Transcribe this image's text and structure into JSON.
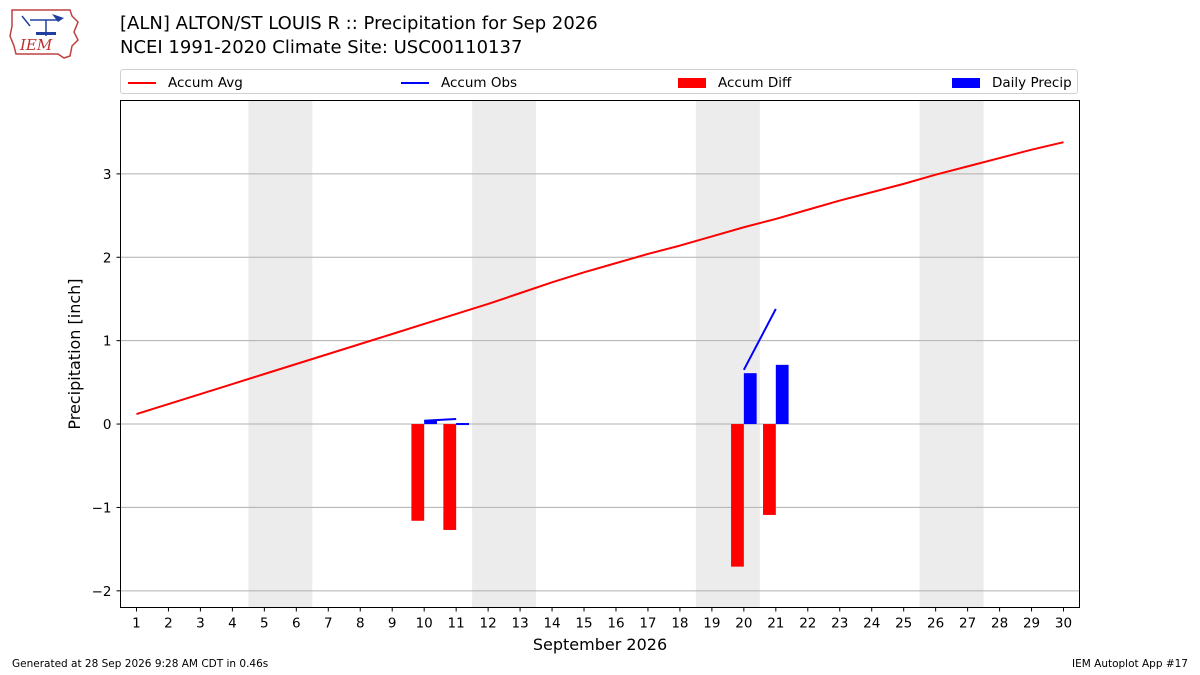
{
  "header": {
    "title_line1": "[ALN] ALTON/ST LOUIS R :: Precipitation for Sep 2026",
    "title_line2": "NCEI 1991-2020 Climate Site: USC00110137",
    "logo_text": "IEM"
  },
  "legend": {
    "placement": "top",
    "items": [
      {
        "label": "Accum Avg",
        "kind": "line",
        "color": "#ff0000"
      },
      {
        "label": "Accum Obs",
        "kind": "line",
        "color": "#0000ff"
      },
      {
        "label": "Accum Diff",
        "kind": "patch",
        "color": "#ff0000"
      },
      {
        "label": "Daily Precip",
        "kind": "patch",
        "color": "#0000ff"
      }
    ]
  },
  "chart_data": {
    "type": "bar",
    "title": "[ALN] ALTON/ST LOUIS R :: Precipitation for Sep 2026",
    "subtitle": "NCEI 1991-2020 Climate Site: USC00110137",
    "xlabel": "September 2026",
    "ylabel": "Precipitation [inch]",
    "x": [
      1,
      2,
      3,
      4,
      5,
      6,
      7,
      8,
      9,
      10,
      11,
      12,
      13,
      14,
      15,
      16,
      17,
      18,
      19,
      20,
      21,
      22,
      23,
      24,
      25,
      26,
      27,
      28,
      29,
      30
    ],
    "xlim": [
      0.5,
      30.5
    ],
    "ylim": [
      -2.2,
      3.88
    ],
    "yticks": [
      -2,
      -1,
      0,
      1,
      2,
      3
    ],
    "grid": "horizontal",
    "weekend_shading": [
      [
        5,
        6
      ],
      [
        12,
        13
      ],
      [
        19,
        20
      ],
      [
        26,
        27
      ]
    ],
    "weekend_shade_color": "#ececec",
    "series": [
      {
        "name": "Accum Avg",
        "kind": "line",
        "color": "#ff0000",
        "x": [
          1,
          2,
          3,
          4,
          5,
          6,
          7,
          8,
          9,
          10,
          11,
          12,
          13,
          14,
          15,
          16,
          17,
          18,
          19,
          20,
          21,
          22,
          23,
          24,
          25,
          26,
          27,
          28,
          29,
          30
        ],
        "values": [
          0.12,
          0.24,
          0.36,
          0.48,
          0.6,
          0.72,
          0.84,
          0.96,
          1.08,
          1.2,
          1.32,
          1.44,
          1.57,
          1.7,
          1.82,
          1.93,
          2.04,
          2.14,
          2.25,
          2.36,
          2.46,
          2.57,
          2.68,
          2.78,
          2.88,
          2.99,
          3.09,
          3.19,
          3.29,
          3.38
        ]
      },
      {
        "name": "Accum Obs",
        "kind": "segments",
        "color": "#0000ff",
        "segments": [
          [
            [
              10,
              0.04
            ],
            [
              11,
              0.06
            ]
          ],
          [
            [
              11,
              0.0
            ],
            [
              11.4,
              0.0
            ]
          ],
          [
            [
              20,
              0.65
            ],
            [
              21,
              1.38
            ]
          ]
        ]
      },
      {
        "name": "Accum Diff",
        "kind": "bar",
        "color": "#ff0000",
        "offset": -0.2,
        "x": [
          10,
          11,
          20,
          21
        ],
        "values": [
          -1.16,
          -1.27,
          -1.71,
          -1.09
        ]
      },
      {
        "name": "Daily Precip",
        "kind": "bar",
        "color": "#0000ff",
        "offset": 0.2,
        "x": [
          10,
          11,
          20,
          21
        ],
        "values": [
          0.04,
          0.01,
          0.61,
          0.71
        ]
      }
    ]
  },
  "footer": {
    "generated": "Generated at 28 Sep 2026 9:28 AM CDT in 0.46s",
    "app": "IEM Autoplot App #17"
  }
}
